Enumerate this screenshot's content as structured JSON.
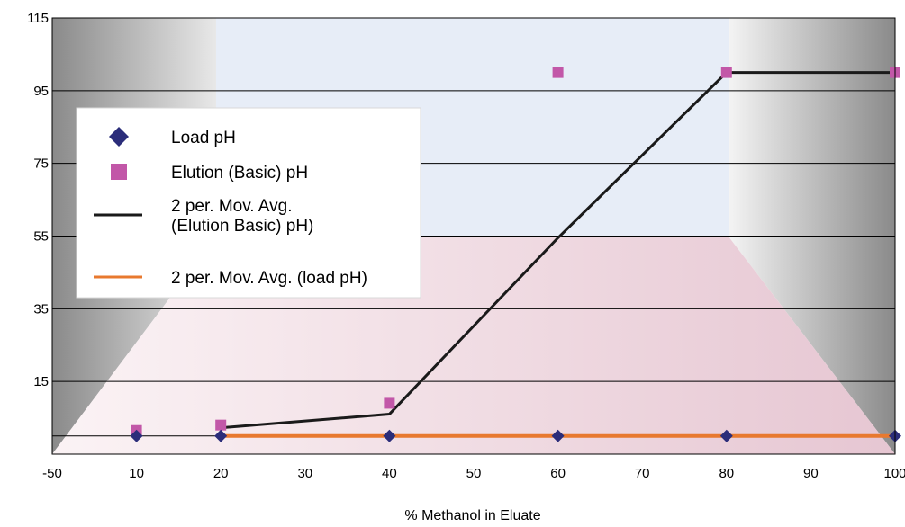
{
  "chart_data": {
    "type": "scatter",
    "xlabel": "% Methanol in Eluate",
    "ylabel": "",
    "title": "",
    "x_ticks": [
      "-50",
      "10",
      "20",
      "30",
      "40",
      "50",
      "60",
      "70",
      "80",
      "90",
      "100"
    ],
    "y_ticks": [
      15,
      35,
      55,
      75,
      95,
      115
    ],
    "ylim": [
      -5,
      115
    ],
    "grid": "horizontal",
    "legend_position": "left",
    "series": [
      {
        "name": "Load pH",
        "kind": "points",
        "marker": "diamond",
        "color": "#2B2D7A",
        "x": [
          "10",
          "20",
          "40",
          "60",
          "80",
          "100"
        ],
        "y": [
          0,
          0,
          0,
          0,
          0,
          0
        ]
      },
      {
        "name": "Elution (Basic) pH",
        "kind": "points",
        "marker": "square",
        "color": "#C257A8",
        "x": [
          "10",
          "20",
          "40",
          "60",
          "80",
          "100"
        ],
        "y": [
          1.5,
          3,
          9,
          100,
          100,
          100
        ]
      },
      {
        "name": "2 per. Mov. Avg.\n(Elution Basic) pH)",
        "kind": "line",
        "color": "#1A1A1A",
        "x": [
          "20",
          "40",
          "60",
          "80",
          "100"
        ],
        "y": [
          2.25,
          6,
          54.5,
          100,
          100
        ]
      },
      {
        "name": "2 per. Mov. Avg. (load pH)",
        "kind": "line",
        "color": "#E8792F",
        "x": [
          "20",
          "40",
          "60",
          "80",
          "100"
        ],
        "y": [
          0,
          0,
          0,
          0,
          0
        ]
      }
    ]
  }
}
